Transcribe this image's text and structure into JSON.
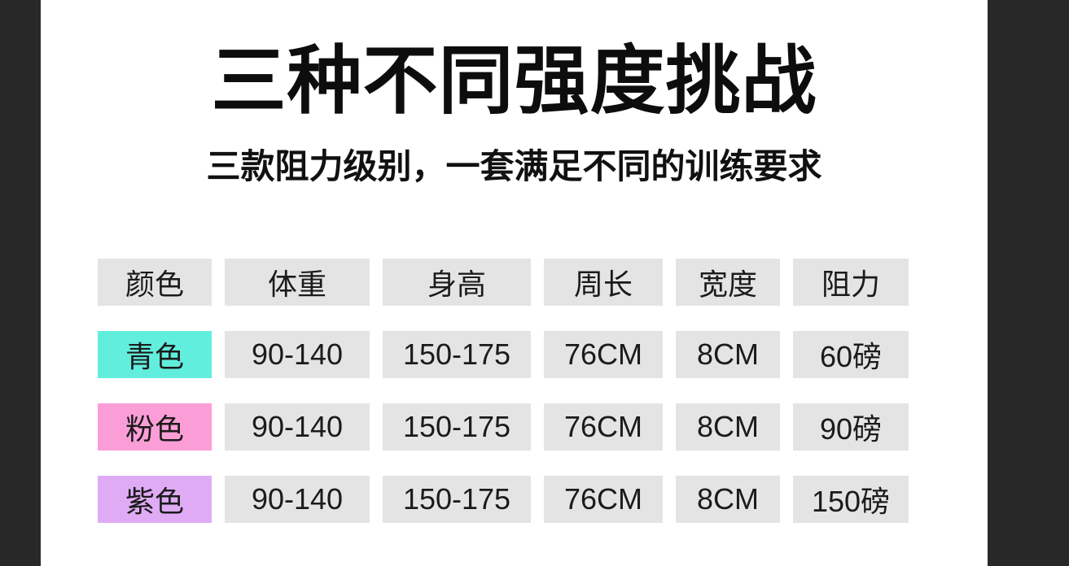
{
  "page": {
    "side_band_color": "#282828",
    "background_color": "#ffffff"
  },
  "chart_data": {
    "type": "table",
    "title": "三种不同强度挑战",
    "subtitle": "三款阻力级别，一套满足不同的训练要求",
    "columns": [
      "颜色",
      "体重",
      "身高",
      "周长",
      "宽度",
      "阻力"
    ],
    "header_bg": "#e4e4e4",
    "cell_bg": "#e4e4e4",
    "rows": [
      {
        "label": "青色",
        "label_color": "#62EEDD",
        "values": [
          "90-140",
          "150-175",
          "76CM",
          "8CM",
          "60磅"
        ]
      },
      {
        "label": "粉色",
        "label_color": "#FB9ED7",
        "values": [
          "90-140",
          "150-175",
          "76CM",
          "8CM",
          "90磅"
        ]
      },
      {
        "label": "紫色",
        "label_color": "#DFABF5",
        "values": [
          "90-140",
          "150-175",
          "76CM",
          "8CM",
          "150磅"
        ]
      }
    ]
  }
}
